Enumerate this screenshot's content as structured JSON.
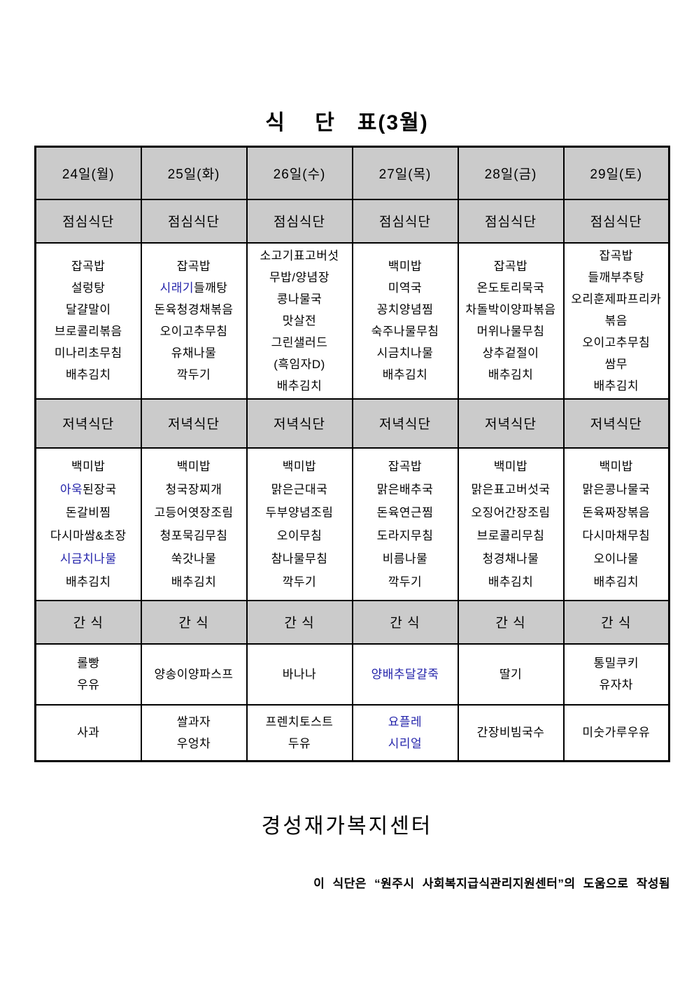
{
  "page": {
    "title": "식    단   표(3월)",
    "org_name": "경성재가복지센터",
    "footnote": "이 식단은 “원주시 사회복지급식관리지원센터”의 도움으로 작성됨"
  },
  "colors": {
    "header_bg": "#cbcbcb",
    "border": "#000000",
    "text": "#000000",
    "accent_blue": "#2222aa"
  },
  "table": {
    "section_labels": {
      "lunch": "점심식단",
      "dinner": "저녁식단",
      "snack": "간 식"
    },
    "columns": [
      {
        "date": "24일(월)",
        "lunch": [
          [
            {
              "text": "잡곡밥"
            }
          ],
          [
            {
              "text": "설렁탕"
            }
          ],
          [
            {
              "text": "달걀말이"
            }
          ],
          [
            {
              "text": "브로콜리볶음"
            }
          ],
          [
            {
              "text": "미나리초무침"
            }
          ],
          [
            {
              "text": "배추김치"
            }
          ]
        ],
        "dinner": [
          [
            {
              "text": "백미밥"
            }
          ],
          [
            {
              "text": "아욱",
              "color": "accent_blue"
            },
            {
              "text": "된장국"
            }
          ],
          [
            {
              "text": "돈갈비찜"
            }
          ],
          [
            {
              "text": "다시마쌈&초장"
            }
          ],
          [
            {
              "text": "시금치나물",
              "color": "accent_blue"
            }
          ],
          [
            {
              "text": "배추김치"
            }
          ]
        ],
        "snack1": [
          [
            {
              "text": "롤빵"
            }
          ],
          [
            {
              "text": "우유"
            }
          ]
        ],
        "snack2": [
          [
            {
              "text": "사과"
            }
          ]
        ]
      },
      {
        "date": "25일(화)",
        "lunch": [
          [
            {
              "text": "잡곡밥"
            }
          ],
          [
            {
              "text": "시래기",
              "color": "accent_blue"
            },
            {
              "text": "들깨탕"
            }
          ],
          [
            {
              "text": "돈육청경채볶음"
            }
          ],
          [
            {
              "text": "오이고추무침"
            }
          ],
          [
            {
              "text": "유채나물"
            }
          ],
          [
            {
              "text": "깍두기"
            }
          ]
        ],
        "dinner": [
          [
            {
              "text": "백미밥"
            }
          ],
          [
            {
              "text": "청국장찌개"
            }
          ],
          [
            {
              "text": "고등어엿장조림"
            }
          ],
          [
            {
              "text": "청포묵김무침"
            }
          ],
          [
            {
              "text": "쑥갓나물"
            }
          ],
          [
            {
              "text": "배추김치"
            }
          ]
        ],
        "snack1": [
          [
            {
              "text": "양송이양파스프"
            }
          ]
        ],
        "snack2": [
          [
            {
              "text": "쌀과자"
            }
          ],
          [
            {
              "text": "우엉차"
            }
          ]
        ]
      },
      {
        "date": "26일(수)",
        "lunch": [
          [
            {
              "text": "소고기표고버섯"
            }
          ],
          [
            {
              "text": "무밥/양념장"
            }
          ],
          [
            {
              "text": "콩나물국"
            }
          ],
          [
            {
              "text": "맛살전"
            }
          ],
          [
            {
              "text": "그린샐러드"
            }
          ],
          [
            {
              "text": "(흑임자D)"
            }
          ],
          [
            {
              "text": "배추김치"
            }
          ]
        ],
        "dinner": [
          [
            {
              "text": "백미밥"
            }
          ],
          [
            {
              "text": "맑은근대국"
            }
          ],
          [
            {
              "text": "두부양념조림"
            }
          ],
          [
            {
              "text": "오이무침"
            }
          ],
          [
            {
              "text": "참나물무침"
            }
          ],
          [
            {
              "text": "깍두기"
            }
          ]
        ],
        "snack1": [
          [
            {
              "text": "바나나"
            }
          ]
        ],
        "snack2": [
          [
            {
              "text": "프렌치토스트"
            }
          ],
          [
            {
              "text": "두유"
            }
          ]
        ]
      },
      {
        "date": "27일(목)",
        "lunch": [
          [
            {
              "text": "백미밥"
            }
          ],
          [
            {
              "text": "미역국"
            }
          ],
          [
            {
              "text": "꽁치양념찜"
            }
          ],
          [
            {
              "text": "숙주나물무침"
            }
          ],
          [
            {
              "text": "시금치나물"
            }
          ],
          [
            {
              "text": "배추김치"
            }
          ]
        ],
        "dinner": [
          [
            {
              "text": "잡곡밥"
            }
          ],
          [
            {
              "text": "맑은배추국"
            }
          ],
          [
            {
              "text": "돈육연근찜"
            }
          ],
          [
            {
              "text": "도라지무침"
            }
          ],
          [
            {
              "text": "비름나물"
            }
          ],
          [
            {
              "text": "깍두기"
            }
          ]
        ],
        "snack1": [
          [
            {
              "text": "양배추달걀죽",
              "color": "accent_blue"
            }
          ]
        ],
        "snack2": [
          [
            {
              "text": "요플레",
              "color": "accent_blue"
            }
          ],
          [
            {
              "text": "시리얼",
              "color": "accent_blue"
            }
          ]
        ]
      },
      {
        "date": "28일(금)",
        "lunch": [
          [
            {
              "text": "잡곡밥"
            }
          ],
          [
            {
              "text": "온도토리묵국"
            }
          ],
          [
            {
              "text": "차돌박이양파볶음"
            }
          ],
          [
            {
              "text": "머위나물무침"
            }
          ],
          [
            {
              "text": "상추겉절이"
            }
          ],
          [
            {
              "text": "배추김치"
            }
          ]
        ],
        "dinner": [
          [
            {
              "text": "백미밥"
            }
          ],
          [
            {
              "text": "맑은표고버섯국"
            }
          ],
          [
            {
              "text": "오징어간장조림"
            }
          ],
          [
            {
              "text": "브로콜리무침"
            }
          ],
          [
            {
              "text": "청경채나물"
            }
          ],
          [
            {
              "text": "배추김치"
            }
          ]
        ],
        "snack1": [
          [
            {
              "text": "딸기"
            }
          ]
        ],
        "snack2": [
          [
            {
              "text": "간장비빔국수"
            }
          ]
        ]
      },
      {
        "date": "29일(토)",
        "lunch": [
          [
            {
              "text": "잡곡밥"
            }
          ],
          [
            {
              "text": "들깨부추탕"
            }
          ],
          [
            {
              "text": "오리훈제파프리카볶음"
            }
          ],
          [
            {
              "text": "오이고추무침"
            }
          ],
          [
            {
              "text": "쌈무"
            }
          ],
          [
            {
              "text": "배추김치"
            }
          ]
        ],
        "dinner": [
          [
            {
              "text": "백미밥"
            }
          ],
          [
            {
              "text": "맑은콩나물국"
            }
          ],
          [
            {
              "text": "돈육짜장볶음"
            }
          ],
          [
            {
              "text": "다시마채무침"
            }
          ],
          [
            {
              "text": "오이나물"
            }
          ],
          [
            {
              "text": "배추김치"
            }
          ]
        ],
        "snack1": [
          [
            {
              "text": "통밀쿠키"
            }
          ],
          [
            {
              "text": "유자차"
            }
          ]
        ],
        "snack2": [
          [
            {
              "text": "미숫가루우유"
            }
          ]
        ]
      }
    ]
  }
}
